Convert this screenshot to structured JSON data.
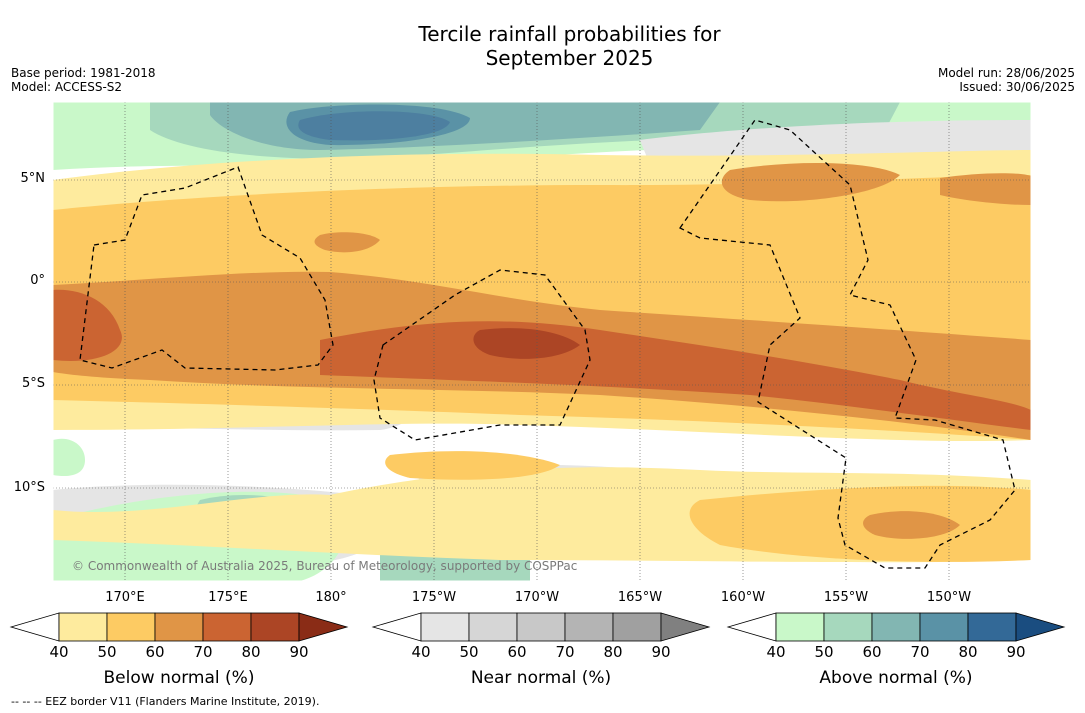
{
  "header": {
    "title_line1": "Tercile rainfall probabilities for",
    "title_line2": "September 2025",
    "base_period": "Base period: 1981-2018",
    "model": "Model: ACCESS-S2",
    "model_run": "Model run: 28/06/2025",
    "issued": "Issued: 30/06/2025"
  },
  "map": {
    "lat_labels": [
      "5°N",
      "0°",
      "5°S",
      "10°S"
    ],
    "lon_labels": [
      "170°E",
      "175°E",
      "180°",
      "175°W",
      "170°W",
      "165°W",
      "160°W",
      "155°W",
      "150°W"
    ],
    "credit": "© Commonwealth of Australia 2025, Bureau of Meteorology, supported by COSPPac",
    "gridlines": true
  },
  "colorbars": [
    {
      "title": "Below normal (%)",
      "ticks": [
        "40",
        "50",
        "60",
        "70",
        "80",
        "90"
      ],
      "colors": [
        "#ffffff",
        "#feeb9e",
        "#fdcb63",
        "#e09546",
        "#cb6432",
        "#ac4525",
        "#8a2c16"
      ]
    },
    {
      "title": "Near normal (%)",
      "ticks": [
        "40",
        "50",
        "60",
        "70",
        "80",
        "90"
      ],
      "colors": [
        "#ffffff",
        "#e5e5e5",
        "#d6d6d6",
        "#c8c8c8",
        "#b4b4b4",
        "#a0a0a0",
        "#808080"
      ]
    },
    {
      "title": "Above normal (%)",
      "ticks": [
        "40",
        "50",
        "60",
        "70",
        "80",
        "90"
      ],
      "colors": [
        "#ffffff",
        "#c9f8c9",
        "#a6d8bd",
        "#82b6b2",
        "#5a92a6",
        "#336997",
        "#1a4d80"
      ]
    }
  ],
  "footnote": "-- -- -- EEZ border V11 (Flanders Marine Institute, 2019)."
}
